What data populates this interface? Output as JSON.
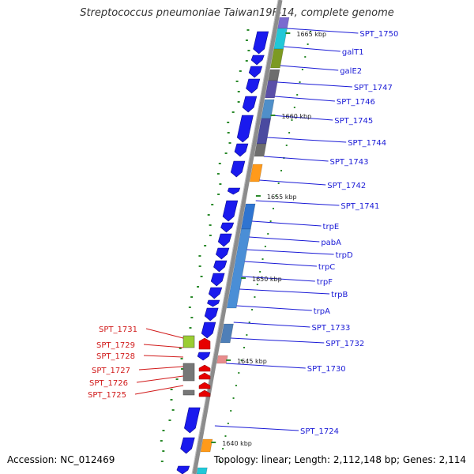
{
  "title": "Streptococcus pneumoniae Taiwan19F-14, complete genome",
  "accession_text": "Accession: NC_012469",
  "topology_text": "Topology: linear; Length: 2,112,148 bp; Genes: 2,114",
  "colors": {
    "forward_label": "#1a1ad6",
    "reverse_label": "#d11a1a",
    "cds": "#1a1aee",
    "rna": "#e60000",
    "backbone": "#8c8c8c",
    "ruler_tick": "#2b8a2b"
  },
  "ruler_labels": [
    "1665 kbp",
    "1660 kbp",
    "1655 kbp",
    "1650 kbp",
    "1645 kbp",
    "1640 kbp"
  ],
  "forward_gene_labels": [
    "SPT_1750",
    "galT1",
    "galE2",
    "SPT_1747",
    "SPT_1746",
    "SPT_1745",
    "SPT_1744",
    "SPT_1743",
    "SPT_1742",
    "SPT_1741",
    "trpE",
    "pabA",
    "trpD",
    "trpC",
    "trpF",
    "trpB",
    "trpA",
    "SPT_1733",
    "SPT_1732",
    "SPT_1730",
    "SPT_1724"
  ],
  "reverse_gene_labels": [
    "SPT_1731",
    "SPT_1729",
    "SPT_1728",
    "SPT_1727",
    "SPT_1726",
    "SPT_1725"
  ]
}
